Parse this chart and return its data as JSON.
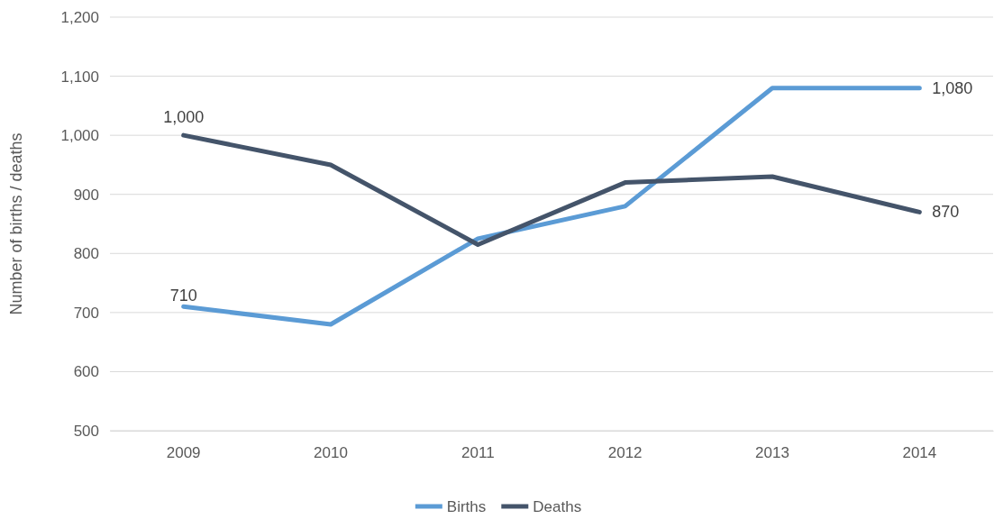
{
  "chart_data": {
    "type": "line",
    "ylabel": "Number of births / deaths",
    "categories": [
      "2009",
      "2010",
      "2011",
      "2012",
      "2013",
      "2014"
    ],
    "series": [
      {
        "name": "Births",
        "color": "#5b9bd5",
        "values": [
          710,
          680,
          825,
          880,
          1080,
          1080
        ],
        "value_labels": [
          "710",
          null,
          null,
          null,
          null,
          "1,080"
        ]
      },
      {
        "name": "Deaths",
        "color": "#44546a",
        "values": [
          1000,
          950,
          815,
          920,
          930,
          870
        ],
        "value_labels": [
          "1,000",
          null,
          null,
          null,
          null,
          "870"
        ]
      }
    ],
    "ylim": [
      500,
      1200
    ],
    "yticks": [
      {
        "value": 500,
        "label": "500"
      },
      {
        "value": 600,
        "label": "600"
      },
      {
        "value": 700,
        "label": "700"
      },
      {
        "value": 800,
        "label": "800"
      },
      {
        "value": 900,
        "label": "900"
      },
      {
        "value": 1000,
        "label": "1,000"
      },
      {
        "value": 1100,
        "label": "1,100"
      },
      {
        "value": 1200,
        "label": "1,200"
      }
    ],
    "grid": "y",
    "legend": "bottom",
    "marker": "none",
    "line_style": "solid"
  }
}
